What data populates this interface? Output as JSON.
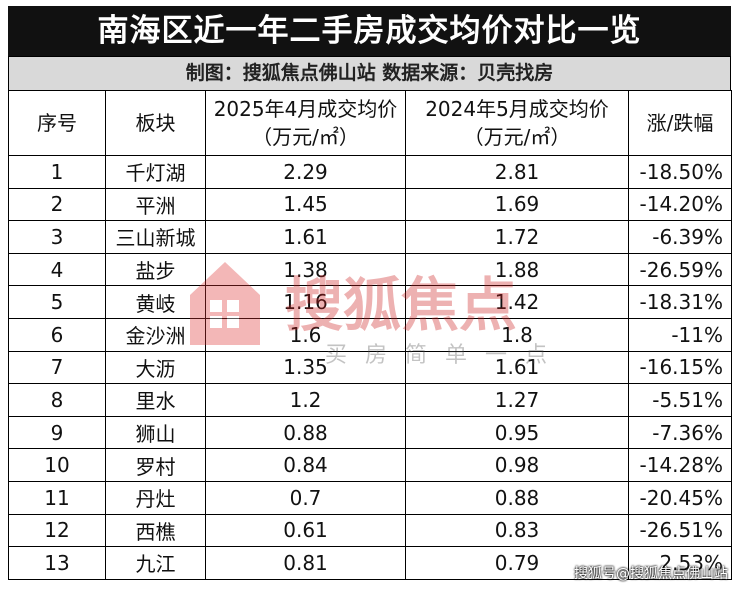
{
  "header": {
    "title": "南海区近一年二手房成交均价对比一览",
    "subtitle": "制图：搜狐焦点佛山站  数据来源：贝壳找房"
  },
  "table": {
    "columns": [
      [
        "序号"
      ],
      [
        "板块"
      ],
      [
        "2025年4月成交均价",
        "（万元/㎡）"
      ],
      [
        "2024年5月成交均价",
        "（万元/㎡）"
      ],
      [
        "涨/跌幅"
      ]
    ],
    "rows": [
      [
        "1",
        "千灯湖",
        "2.29",
        "2.81",
        "-18.50%"
      ],
      [
        "2",
        "平洲",
        "1.45",
        "1.69",
        "-14.20%"
      ],
      [
        "3",
        "三山新城",
        "1.61",
        "1.72",
        "-6.39%"
      ],
      [
        "4",
        "盐步",
        "1.38",
        "1.88",
        "-26.59%"
      ],
      [
        "5",
        "黄岐",
        "1.16",
        "1.42",
        "-18.31%"
      ],
      [
        "6",
        "金沙洲",
        "1.6",
        "1.8",
        "-11%"
      ],
      [
        "7",
        "大沥",
        "1.35",
        "1.61",
        "-16.15%"
      ],
      [
        "8",
        "里水",
        "1.2",
        "1.27",
        "-5.51%"
      ],
      [
        "9",
        "狮山",
        "0.88",
        "0.95",
        "-7.36%"
      ],
      [
        "10",
        "罗村",
        "0.84",
        "0.98",
        "-14.28%"
      ],
      [
        "11",
        "丹灶",
        "0.7",
        "0.88",
        "-20.45%"
      ],
      [
        "12",
        "西樵",
        "0.61",
        "0.83",
        "-26.51%"
      ],
      [
        "13",
        "九江",
        "0.81",
        "0.79",
        "2.53%"
      ]
    ]
  },
  "watermark": {
    "brand": "搜狐焦点",
    "slogan": "买房简单一点",
    "credit": "搜狐号@搜狐焦点佛山站"
  }
}
